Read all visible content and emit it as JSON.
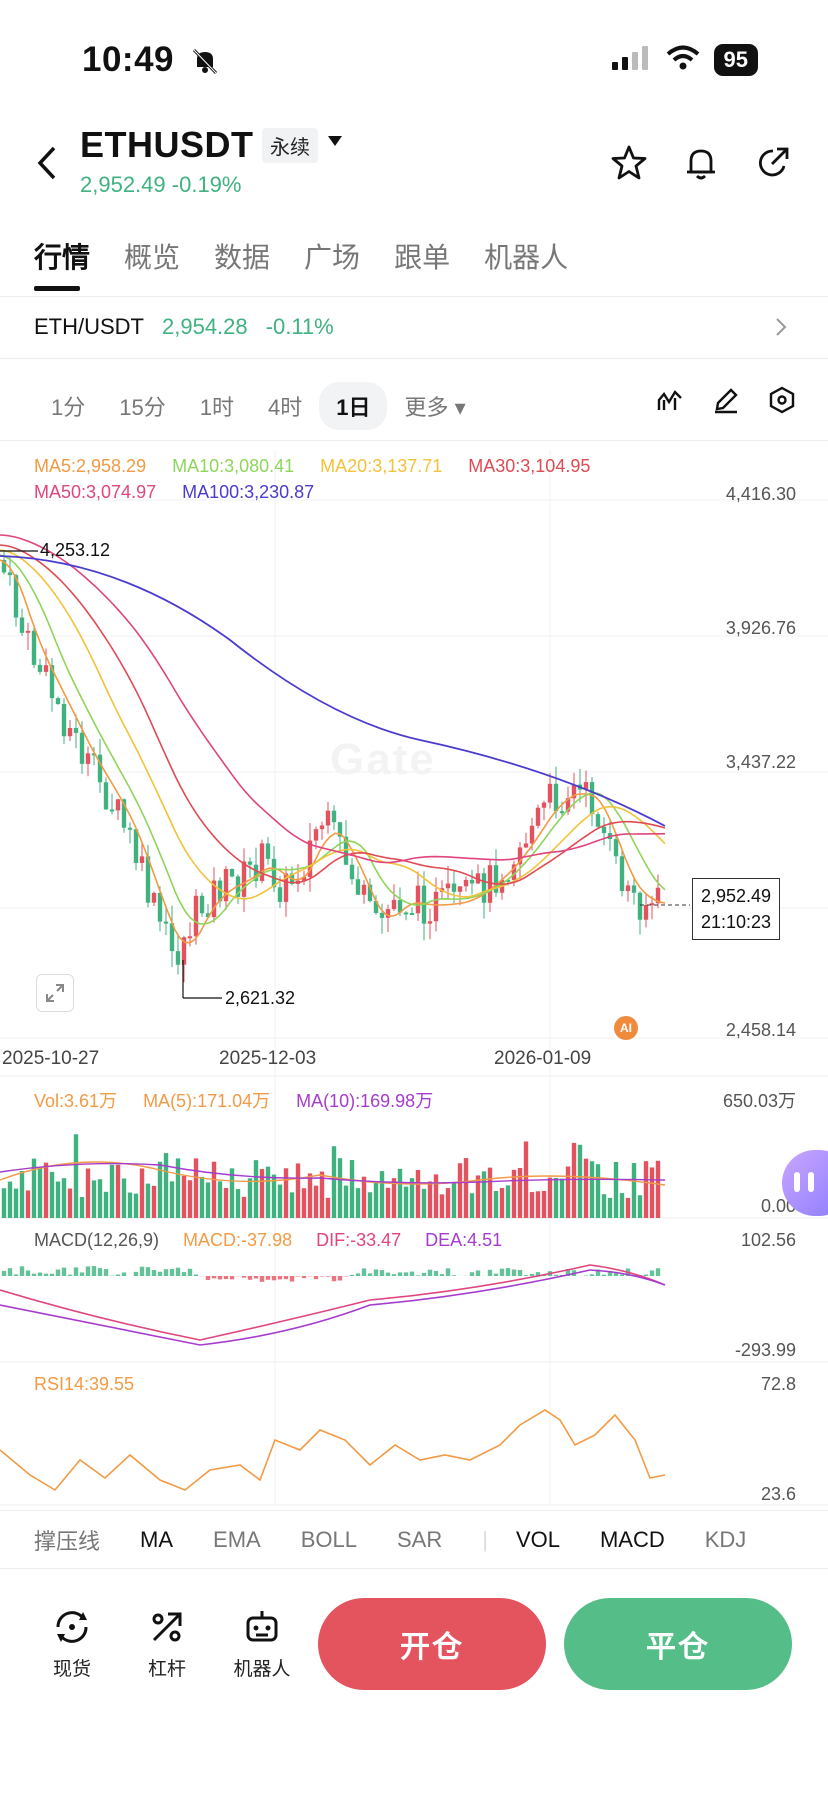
{
  "status": {
    "time": "10:49",
    "battery": "95"
  },
  "header": {
    "title": "ETHUSDT",
    "contract_tag": "永续",
    "price": "2,952.49",
    "change": "-0.19%"
  },
  "tabs": [
    "行情",
    "概览",
    "数据",
    "广场",
    "跟单",
    "机器人"
  ],
  "spot": {
    "pair": "ETH/USDT",
    "price": "2,954.28",
    "change": "-0.11%"
  },
  "timeframes": [
    "1分",
    "15分",
    "1时",
    "4时",
    "1日",
    "更多"
  ],
  "selected_timeframe": "1日",
  "ma_legend": {
    "ma5": "MA5:2,958.29",
    "ma10": "MA10:3,080.41",
    "ma20": "MA20:3,137.71",
    "ma30": "MA30:3,104.95",
    "ma50": "MA50:3,074.97",
    "ma100": "MA100:3,230.87"
  },
  "colors": {
    "up": "#e2535f",
    "down": "#3fb27f",
    "ma5": "#f29a44",
    "ma10": "#8ed55a",
    "ma20": "#f2c23a",
    "ma30": "#e04a52",
    "ma50": "#e0457f",
    "ma100": "#4a3ccf"
  },
  "price_axis": [
    "4,416.30",
    "3,926.76",
    "3,437.22",
    "2,458.14"
  ],
  "high_marker": "4,253.12",
  "low_marker": "2,621.32",
  "last_price_box": {
    "price": "2,952.49",
    "countdown": "21:10:23"
  },
  "date_axis": [
    "2025-10-27",
    "2025-12-03",
    "2026-01-09"
  ],
  "watermark": "Gate",
  "ai_badge": "AI",
  "volume": {
    "vol": "Vol:3.61万",
    "ma5": "MA(5):171.04万",
    "ma10": "MA(10):169.98万",
    "max": "650.03万",
    "min": "0.00"
  },
  "macd": {
    "title": "MACD(12,26,9)",
    "macd": "MACD:-37.98",
    "dif": "DIF:-33.47",
    "dea": "DEA:4.51",
    "max": "102.56",
    "min": "-293.99"
  },
  "rsi": {
    "title": "RSI14:39.55",
    "max": "72.8",
    "min": "23.6"
  },
  "indicators": [
    "撑压线",
    "MA",
    "EMA",
    "BOLL",
    "SAR",
    "VOL",
    "MACD",
    "KDJ"
  ],
  "bottom_nav": [
    "现货",
    "杠杆",
    "机器人"
  ],
  "actions": {
    "open": "开仓",
    "close": "平仓"
  }
}
